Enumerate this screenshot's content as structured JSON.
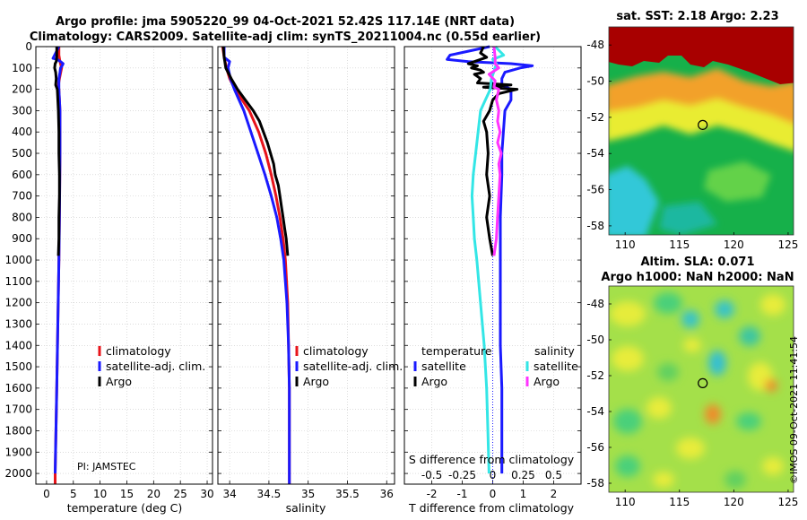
{
  "header": {
    "title_line1": "Argo profile: jma 5905220_99 04-Oct-2021 52.42S 117.14E (NRT data)",
    "title_line2": "Climatology: CARS2009. Satellite-adj clim: synTS_20211004.nc (0.55d earlier)"
  },
  "depth_ticks": [
    0,
    100,
    200,
    300,
    400,
    500,
    600,
    700,
    800,
    900,
    1000,
    1100,
    1200,
    1300,
    1400,
    1500,
    1600,
    1700,
    1800,
    1900,
    2000
  ],
  "colors": {
    "climatology": "#e8141b",
    "satellite_adj": "#1a1aff",
    "argo": "#000000",
    "sat_salinity": "#33e6e6",
    "argo_salinity": "#ff33ff",
    "dotted": "#1a1aff"
  },
  "chart_data": [
    {
      "type": "line",
      "name": "temperature",
      "xlabel": "temperature (deg C)",
      "ylabel": "",
      "xlim": [
        -2,
        31
      ],
      "ylim": [
        2050,
        0
      ],
      "xticks": [
        0,
        5,
        10,
        15,
        20,
        25,
        30
      ],
      "xtick_labels": [
        "0",
        "5",
        "10",
        "15",
        "20",
        "25",
        "30"
      ],
      "legend": [
        "climatology",
        "satellite-adj. clim.",
        "Argo"
      ],
      "legend_position": "lower-right",
      "annotation": "PI: JAMSTEC",
      "series": [
        {
          "name": "climatology",
          "depth": [
            0,
            40,
            70,
            100,
            150,
            180,
            200,
            300,
            500,
            800,
            1000,
            1300,
            1600,
            2000,
            2050
          ],
          "values": [
            2.3,
            2.3,
            2.5,
            2.8,
            2.4,
            2.2,
            2.3,
            2.5,
            2.5,
            2.4,
            2.3,
            2.1,
            1.9,
            1.6,
            1.6
          ]
        },
        {
          "name": "satellite-adj. clim.",
          "depth": [
            0,
            40,
            55,
            60,
            70,
            80,
            90,
            100,
            120,
            150,
            180,
            200,
            300,
            500,
            800,
            1000,
            1300,
            1600,
            2000
          ],
          "values": [
            2.3,
            1.5,
            1.2,
            2.0,
            2.6,
            3.1,
            2.9,
            2.6,
            2.5,
            2.3,
            2.3,
            2.3,
            2.5,
            2.5,
            2.4,
            2.3,
            2.1,
            1.9,
            1.6
          ]
        },
        {
          "name": "Argo",
          "depth": [
            0,
            50,
            70,
            80,
            100,
            120,
            150,
            180,
            200,
            250,
            300,
            400,
            500,
            600,
            700,
            800,
            900,
            980
          ],
          "values": [
            1.9,
            1.9,
            1.8,
            1.6,
            1.5,
            1.7,
            1.8,
            1.7,
            2.0,
            2.1,
            2.2,
            2.3,
            2.3,
            2.4,
            2.4,
            2.3,
            2.3,
            2.2
          ]
        }
      ]
    },
    {
      "type": "line",
      "name": "salinity",
      "xlabel": "salinity",
      "xlim": [
        33.85,
        36.1
      ],
      "ylim": [
        2050,
        0
      ],
      "xticks": [
        34,
        34.5,
        35,
        35.5,
        36
      ],
      "xtick_labels": [
        "34",
        "34.5",
        "35",
        "35.5",
        "36"
      ],
      "legend": [
        "climatology",
        "satellite-adj. clim.",
        "Argo"
      ],
      "legend_position": "lower-right",
      "series": [
        {
          "name": "climatology",
          "depth": [
            0,
            50,
            100,
            150,
            200,
            250,
            300,
            400,
            500,
            600,
            700,
            800,
            900,
            1000,
            1200,
            1400,
            1600,
            1800,
            2000,
            2050
          ],
          "values": [
            33.91,
            33.93,
            33.96,
            34.0,
            34.07,
            34.16,
            34.25,
            34.37,
            34.46,
            34.53,
            34.59,
            34.64,
            34.68,
            34.71,
            34.74,
            34.75,
            34.76,
            34.76,
            34.76,
            34.76
          ]
        },
        {
          "name": "satellite-adj. clim.",
          "depth": [
            0,
            50,
            70,
            100,
            150,
            200,
            250,
            300,
            400,
            500,
            600,
            700,
            800,
            900,
            1000,
            1200,
            1400,
            1600,
            1800,
            2000,
            2050
          ],
          "values": [
            33.93,
            33.93,
            34.0,
            33.98,
            34.01,
            34.06,
            34.12,
            34.18,
            34.27,
            34.36,
            34.45,
            34.53,
            34.6,
            34.65,
            34.69,
            34.73,
            34.75,
            34.76,
            34.76,
            34.76,
            34.76
          ]
        },
        {
          "name": "Argo",
          "depth": [
            0,
            50,
            100,
            150,
            200,
            250,
            300,
            350,
            400,
            450,
            500,
            550,
            600,
            650,
            700,
            750,
            800,
            850,
            900,
            980
          ],
          "values": [
            33.92,
            33.93,
            33.95,
            34.02,
            34.1,
            34.2,
            34.3,
            34.38,
            34.43,
            34.48,
            34.52,
            34.56,
            34.58,
            34.62,
            34.64,
            34.66,
            34.68,
            34.7,
            34.72,
            34.74
          ]
        }
      ]
    },
    {
      "type": "line",
      "name": "differences",
      "xlabel": "T difference from climatology",
      "top_axis_label": "S difference from climatology",
      "xlim": [
        -2.9,
        2.9
      ],
      "ylim": [
        2050,
        0
      ],
      "xticks": [
        -2,
        -1,
        0,
        1,
        2
      ],
      "xtick_labels": [
        "-2",
        "-1",
        "0",
        "1",
        "2"
      ],
      "top_ticks": [
        -0.5,
        -0.25,
        0,
        0.25,
        0.5
      ],
      "top_tick_labels": [
        "-0.5",
        "-0.25",
        "0",
        "0.25",
        "0.5"
      ],
      "legend_left_title": "temperature",
      "legend_right_title": "salinity",
      "legend_left": [
        "satellite",
        "Argo"
      ],
      "legend_right": [
        "satellite",
        "Argo"
      ],
      "legend_position": "center",
      "series": [
        {
          "name": "T satellite",
          "depth": [
            0,
            40,
            60,
            70,
            80,
            90,
            100,
            120,
            150,
            180,
            200,
            250,
            300,
            400,
            500,
            600,
            800,
            1000,
            1200,
            1400,
            1600,
            1800,
            2000
          ],
          "values": [
            -0.1,
            -1.4,
            -1.5,
            -0.8,
            0.6,
            1.3,
            0.9,
            0.4,
            0.3,
            0.3,
            0.6,
            0.6,
            0.4,
            0.35,
            0.3,
            0.3,
            0.25,
            0.25,
            0.25,
            0.25,
            0.3,
            0.3,
            0.3
          ]
        },
        {
          "name": "T Argo",
          "depth": [
            0,
            30,
            50,
            70,
            80,
            90,
            100,
            110,
            120,
            130,
            150,
            170,
            180,
            190,
            200,
            220,
            250,
            300,
            350,
            400,
            500,
            600,
            700,
            800,
            900,
            980
          ],
          "values": [
            -0.3,
            -0.4,
            -0.2,
            -0.6,
            -0.8,
            -0.5,
            -0.7,
            -0.4,
            -0.3,
            -0.6,
            -0.4,
            -0.5,
            0.6,
            -0.3,
            0.8,
            0.2,
            0.0,
            -0.1,
            -0.3,
            -0.2,
            -0.15,
            -0.2,
            -0.1,
            -0.2,
            -0.1,
            0.0
          ]
        },
        {
          "name": "S satellite",
          "depth": [
            0,
            40,
            60,
            80,
            100,
            150,
            200,
            250,
            300,
            400,
            500,
            600,
            700,
            800,
            900,
            1000,
            1200,
            1400,
            1600,
            1800,
            2000
          ],
          "values": [
            0.02,
            0.09,
            0.0,
            0.03,
            0.02,
            -0.01,
            -0.02,
            -0.06,
            -0.1,
            -0.12,
            -0.14,
            -0.16,
            -0.17,
            -0.16,
            -0.15,
            -0.13,
            -0.1,
            -0.07,
            -0.05,
            -0.04,
            -0.03
          ]
        },
        {
          "name": "S Argo",
          "depth": [
            0,
            50,
            80,
            100,
            130,
            160,
            190,
            200,
            250,
            300,
            350,
            400,
            450,
            500,
            550,
            600,
            700,
            800,
            900,
            980
          ],
          "values": [
            0.01,
            0.02,
            0.02,
            0.05,
            -0.03,
            0.02,
            0.01,
            0.05,
            0.03,
            0.05,
            0.04,
            0.06,
            0.04,
            0.07,
            0.05,
            0.06,
            0.05,
            0.04,
            0.03,
            0.01
          ]
        }
      ]
    },
    {
      "type": "heatmap",
      "name": "satellite SST map",
      "title": "sat. SST: 2.18 Argo: 2.23",
      "xlim": [
        108.5,
        125.5
      ],
      "ylim": [
        -58.5,
        -47
      ],
      "xticks": [
        110,
        115,
        120,
        125
      ],
      "yticks": [
        -48,
        -50,
        -52,
        -54,
        -56,
        -58
      ],
      "marker": [
        117.14,
        -52.42
      ]
    },
    {
      "type": "heatmap",
      "name": "altimetry SLA map",
      "title_line1": "Altim. SLA: 0.071",
      "title_line2": "Argo h1000: NaN h2000: NaN",
      "xlim": [
        108.5,
        125.5
      ],
      "ylim": [
        -58.5,
        -47
      ],
      "xticks": [
        110,
        115,
        120,
        125
      ],
      "yticks": [
        -48,
        -50,
        -52,
        -54,
        -56,
        -58
      ],
      "marker": [
        117.14,
        -52.42
      ]
    }
  ],
  "watermark": "©IMOS 09-Oct-2021 11:41:54"
}
